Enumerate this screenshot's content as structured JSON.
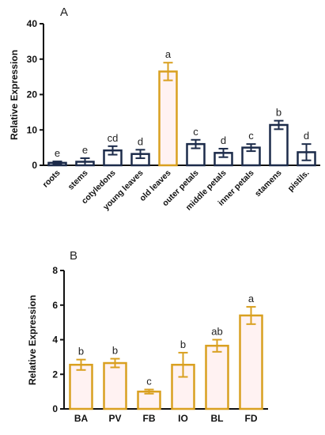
{
  "chart_data": [
    {
      "panel": "A",
      "type": "bar",
      "ylabel": "Relative Expression",
      "xlabel": "",
      "ylim": [
        0,
        40
      ],
      "yticks": [
        0,
        10,
        20,
        30,
        40
      ],
      "categories": [
        "roots",
        "stems",
        "cotyledons",
        "young leaves",
        "old leaves",
        "outer petals",
        "middle petals",
        "inner petals",
        "stamens",
        "pistils."
      ],
      "values": [
        0.7,
        1.0,
        4.2,
        3.2,
        26.5,
        6.0,
        3.5,
        5.0,
        11.4,
        3.7
      ],
      "errors": [
        0.4,
        1.0,
        1.2,
        1.2,
        2.5,
        1.2,
        1.2,
        1.0,
        1.2,
        2.3
      ],
      "significance": [
        "e",
        "e",
        "cd",
        "d",
        "a",
        "c",
        "d",
        "c",
        "b",
        "d"
      ],
      "highlight_index": 4,
      "colors": {
        "bar": "#1c2b4a",
        "highlight": "#d9a020",
        "fill": "#ffffff",
        "highlight_fill": "#fff2f2"
      }
    },
    {
      "panel": "B",
      "type": "bar",
      "ylabel": "Relative Expression",
      "xlabel": "",
      "ylim": [
        0,
        8
      ],
      "yticks": [
        0,
        2,
        4,
        6,
        8
      ],
      "categories": [
        "BA",
        "PV",
        "FB",
        "IO",
        "BL",
        "FD"
      ],
      "values": [
        2.55,
        2.65,
        1.0,
        2.55,
        3.65,
        5.4
      ],
      "errors": [
        0.3,
        0.25,
        0.12,
        0.7,
        0.35,
        0.5
      ],
      "significance": [
        "b",
        "b",
        "c",
        "b",
        "ab",
        "a"
      ],
      "colors": {
        "bar": "#d9a020",
        "fill": "#fff2f2"
      }
    }
  ]
}
